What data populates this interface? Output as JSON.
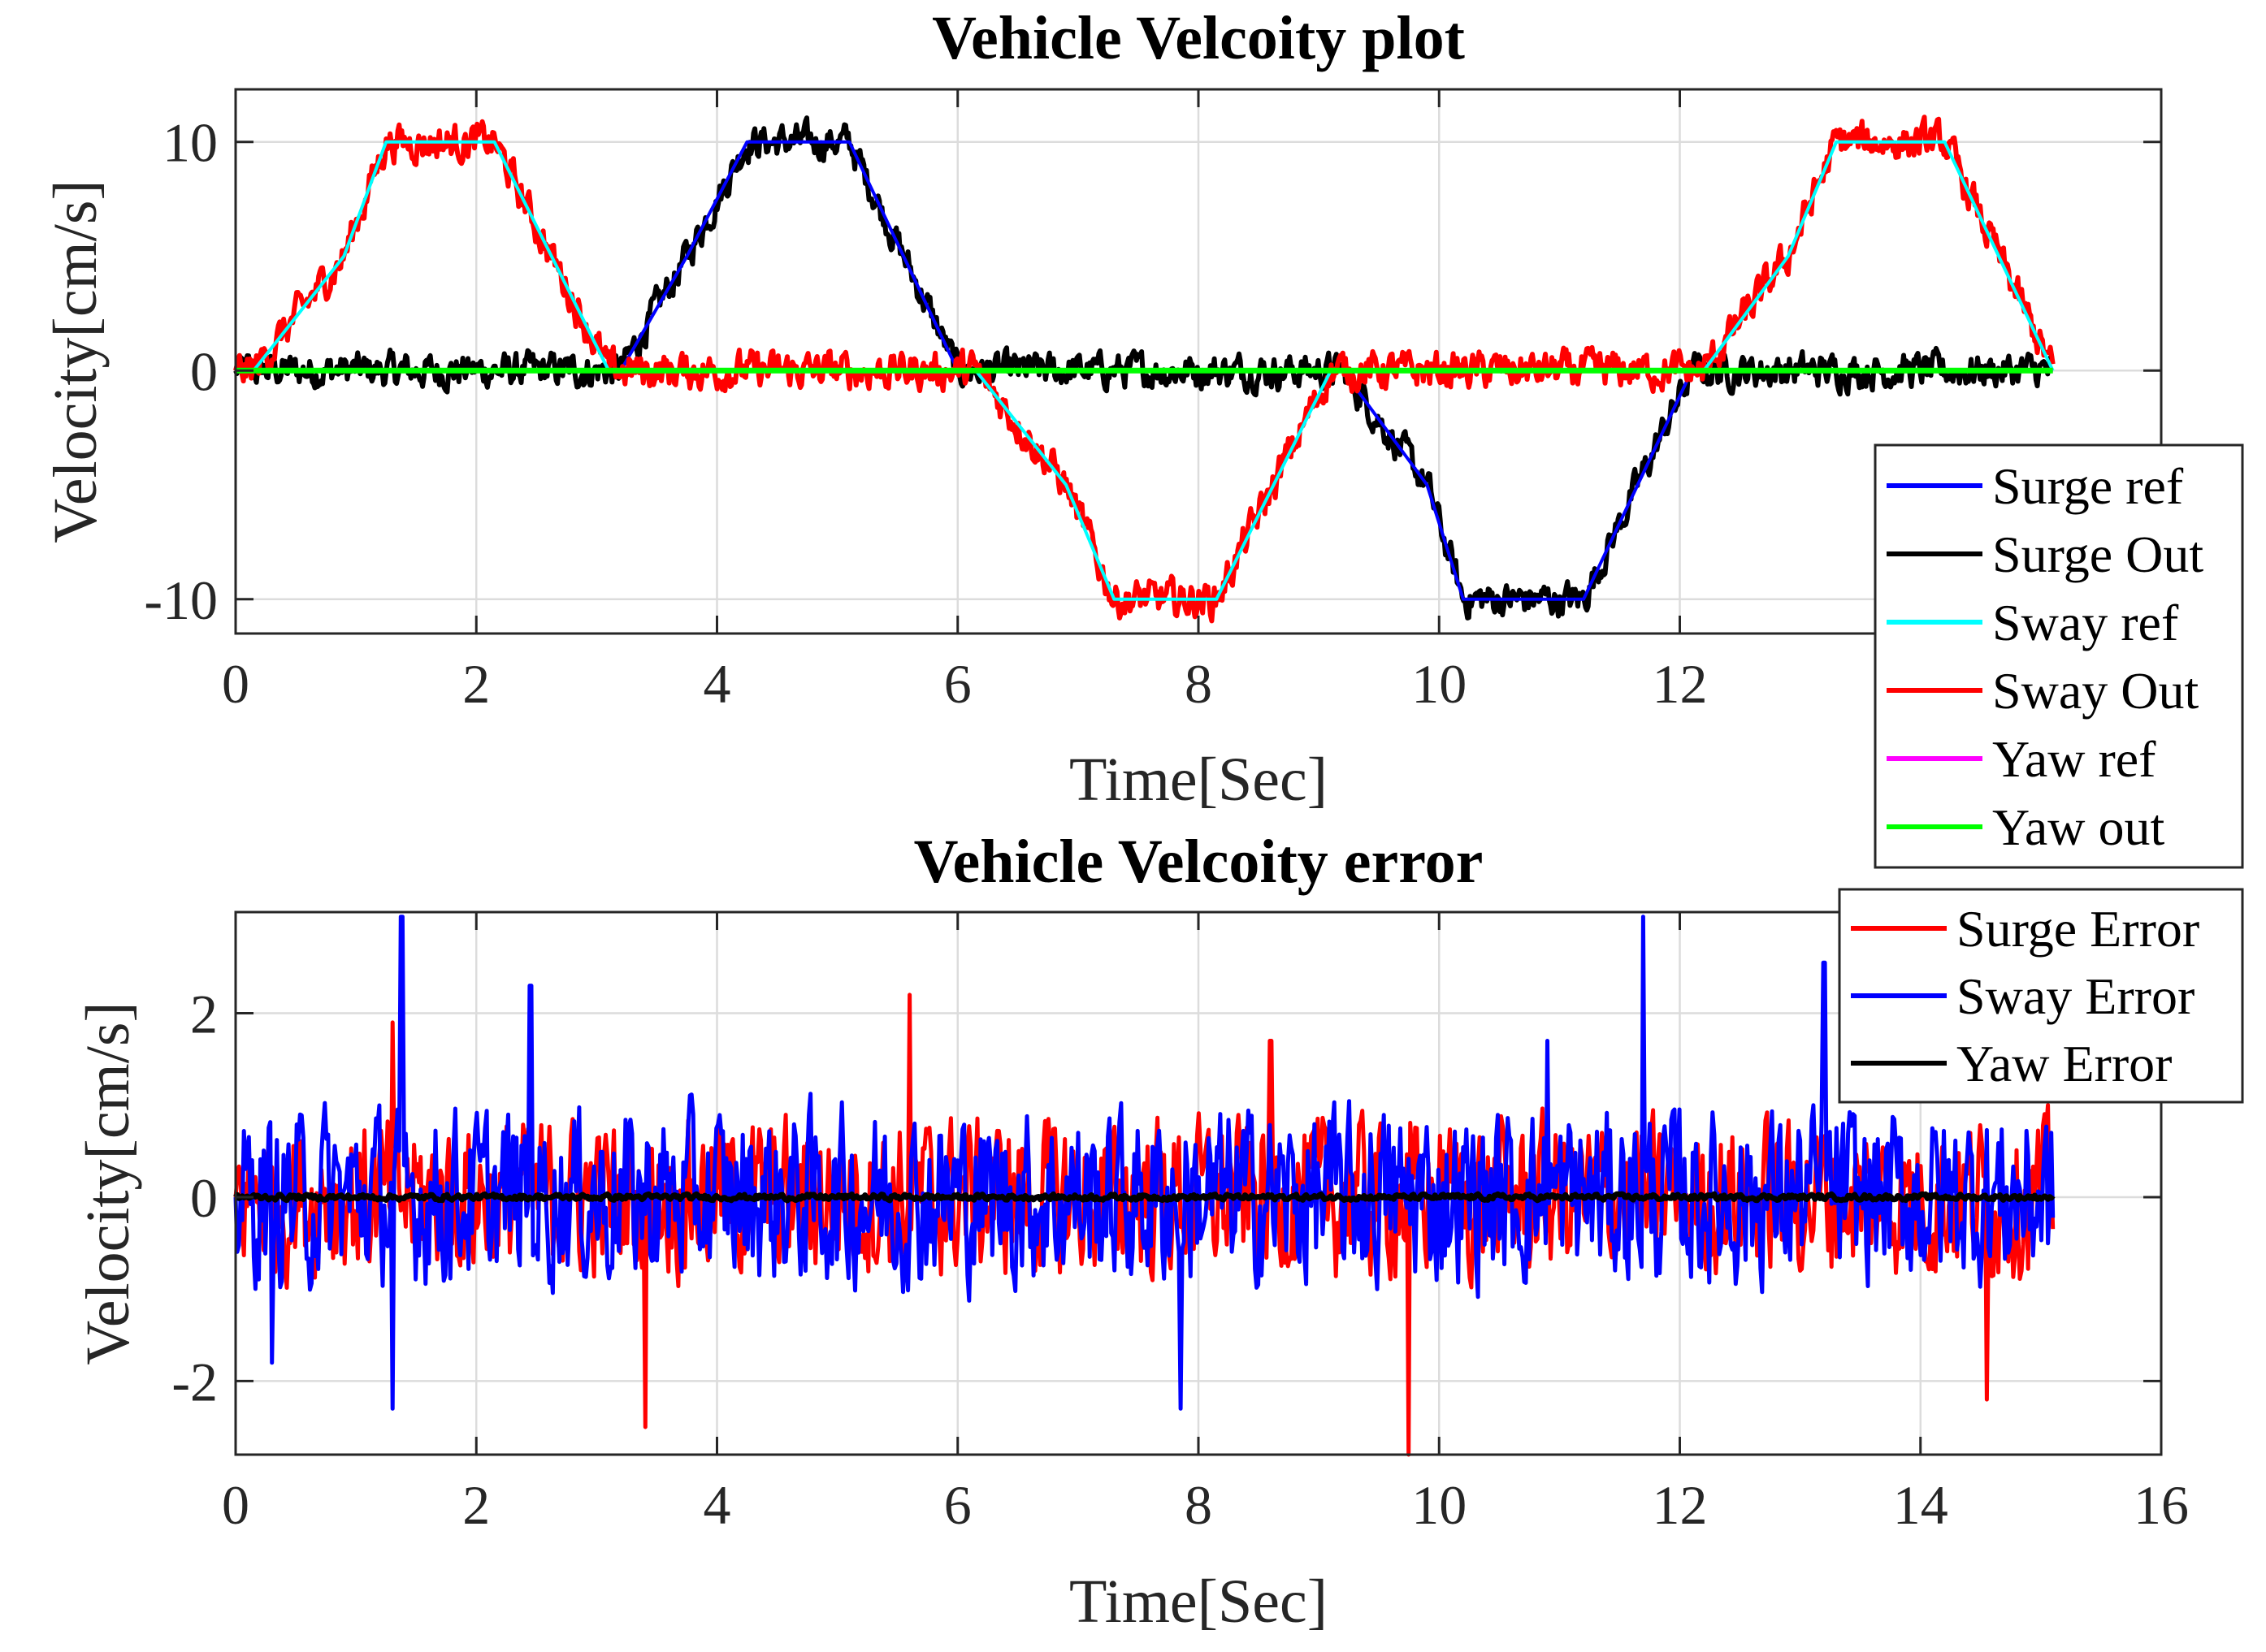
{
  "chart_data": [
    {
      "type": "line",
      "title": "Vehicle Velcoity plot",
      "xlabel": "Time[Sec]",
      "ylabel": "Velocity[cm/s]",
      "xlim": [
        0,
        16
      ],
      "ylim": [
        -11.5,
        12.3
      ],
      "xticks": [
        0,
        2,
        4,
        6,
        8,
        10,
        12
      ],
      "xtick_labels": [
        "0",
        "2",
        "4",
        "6",
        "8",
        "10",
        "12"
      ],
      "yticks": [
        10,
        0,
        -10
      ],
      "ytick_labels": [
        "10",
        "0",
        "-10"
      ],
      "grid": true,
      "legend_position": "right-outside-bottom",
      "series": [
        {
          "name": "Surge ref",
          "color": "#0000ff",
          "t": [
            0,
            3.2,
            3.75,
            4.25,
            4.75,
            5.1,
            6.0,
            9.2,
            9.9,
            10.2,
            10.9,
            11.2,
            12.1,
            15.1
          ],
          "v": [
            0,
            0,
            5,
            10,
            10,
            10,
            0,
            0,
            -5,
            -10,
            -10,
            -10,
            0,
            0
          ]
        },
        {
          "name": "Surge Out",
          "color": "#000000",
          "t": [
            0,
            3.2,
            3.75,
            4.25,
            4.75,
            5.1,
            6.0,
            9.2,
            9.9,
            10.2,
            10.9,
            11.2,
            12.1,
            15.1
          ],
          "v": [
            0,
            0,
            5,
            10,
            10,
            10,
            0,
            0,
            -5,
            -10,
            -10,
            -10,
            0,
            0
          ],
          "noise": 0.7
        },
        {
          "name": "Sway ref",
          "color": "#00ffff",
          "t": [
            0,
            0.15,
            0.9,
            1.25,
            1.9,
            2.15,
            3.1,
            6.15,
            6.9,
            7.3,
            7.9,
            8.15,
            9.1,
            12.2,
            12.9,
            13.3,
            13.9,
            14.2,
            15.1
          ],
          "v": [
            0,
            0,
            5,
            10,
            10,
            10,
            0,
            0,
            -5,
            -10,
            -10,
            -10,
            0,
            0,
            5,
            10,
            10,
            10,
            0
          ]
        },
        {
          "name": "Sway Out",
          "color": "#ff0000",
          "t": [
            0,
            0.15,
            0.9,
            1.25,
            1.9,
            2.15,
            3.1,
            6.15,
            6.9,
            7.3,
            7.9,
            8.15,
            9.1,
            12.2,
            12.9,
            13.3,
            13.9,
            14.2,
            15.1
          ],
          "v": [
            0,
            0,
            5,
            10,
            10,
            10,
            0,
            0,
            -5,
            -10,
            -10,
            -10,
            0,
            0,
            5,
            10,
            10,
            10,
            0
          ],
          "noise": 0.75
        },
        {
          "name": "Yaw ref",
          "color": "#ff00ff",
          "t": [
            0,
            15.1
          ],
          "v": [
            0,
            0
          ]
        },
        {
          "name": "Yaw out",
          "color": "#00ff00",
          "t": [
            0,
            15.1
          ],
          "v": [
            0,
            0
          ]
        }
      ]
    },
    {
      "type": "line",
      "title": "Vehicle Velcoity error",
      "xlabel": "Time[Sec]",
      "ylabel": "Velocity[cm/s]",
      "xlim": [
        0,
        16
      ],
      "ylim": [
        -2.8,
        3.1
      ],
      "xticks": [
        0,
        2,
        4,
        6,
        8,
        10,
        12,
        14,
        16
      ],
      "xtick_labels": [
        "0",
        "2",
        "4",
        "6",
        "8",
        "10",
        "12",
        "14",
        "16"
      ],
      "yticks": [
        2,
        0,
        -2
      ],
      "ytick_labels": [
        "2",
        "0",
        "-2"
      ],
      "grid": true,
      "legend_position": "top-right",
      "series": [
        {
          "name": "Surge Error",
          "color": "#ff0000",
          "t_end": 15.1,
          "amplitude": 0.85,
          "peaks": [
            [
              5.6,
              2.2
            ],
            [
              9.75,
              -2.8
            ],
            [
              3.4,
              -2.5
            ],
            [
              14.55,
              -2.2
            ],
            [
              1.3,
              1.9
            ],
            [
              8.6,
              1.7
            ]
          ]
        },
        {
          "name": "Sway Error",
          "color": "#0000ff",
          "t_end": 15.1,
          "amplitude": 0.95,
          "peaks": [
            [
              1.38,
              3.05
            ],
            [
              11.7,
              3.05
            ],
            [
              13.2,
              2.55
            ],
            [
              2.45,
              2.3
            ],
            [
              1.3,
              -2.3
            ],
            [
              7.85,
              -2.3
            ],
            [
              0.3,
              -1.8
            ],
            [
              10.9,
              1.7
            ]
          ]
        },
        {
          "name": "Yaw Error",
          "color": "#000000",
          "t_end": 15.1,
          "amplitude": 0.03,
          "peaks": []
        }
      ]
    }
  ]
}
